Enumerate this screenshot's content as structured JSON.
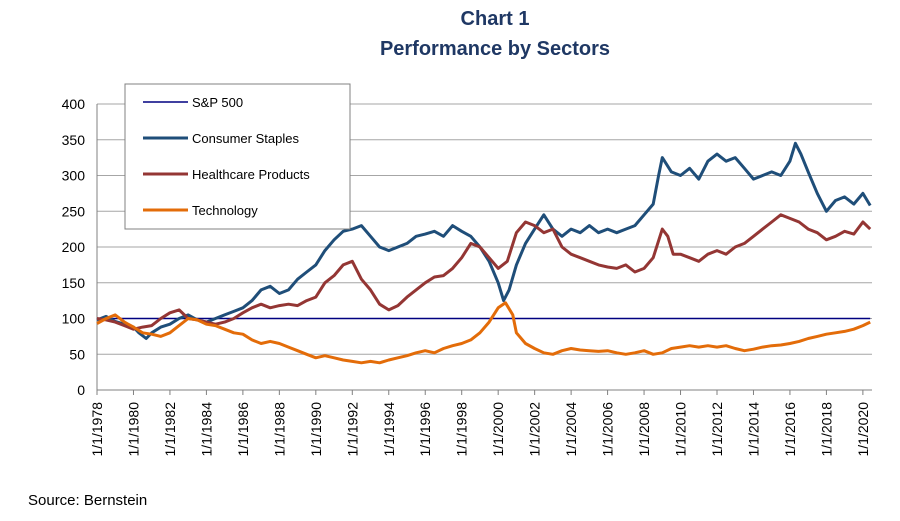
{
  "chart_data": {
    "type": "line",
    "title": "Chart 1",
    "subtitle": "Performance by Sectors",
    "xlabel": "",
    "ylabel": "",
    "ylim": [
      0,
      400
    ],
    "yticks": [
      0,
      50,
      100,
      150,
      200,
      250,
      300,
      350,
      400
    ],
    "xlim": [
      1978,
      2020.5
    ],
    "xticks": [
      "1/1/1978",
      "1/1/1980",
      "1/1/1982",
      "1/1/1984",
      "1/1/1986",
      "1/1/1988",
      "1/1/1990",
      "1/1/1992",
      "1/1/1994",
      "1/1/1996",
      "1/1/1998",
      "1/1/2000",
      "1/1/2002",
      "1/1/2004",
      "1/1/2006",
      "1/1/2008",
      "1/1/2010",
      "1/1/2012",
      "1/1/2014",
      "1/1/2016",
      "1/1/2018",
      "1/1/2020"
    ],
    "grid": true,
    "legend_position": "top-left",
    "series": [
      {
        "name": "S&P 500",
        "color": "#000080",
        "width": 1.5,
        "points": [
          [
            1978,
            100
          ],
          [
            2020.4,
            100
          ]
        ]
      },
      {
        "name": "Consumer Staples",
        "color": "#1f4e79",
        "width": 3,
        "points": [
          [
            1978,
            98
          ],
          [
            1978.5,
            103
          ],
          [
            1979,
            96
          ],
          [
            1979.5,
            92
          ],
          [
            1980,
            88
          ],
          [
            1980.3,
            80
          ],
          [
            1980.7,
            72
          ],
          [
            1981,
            80
          ],
          [
            1981.5,
            88
          ],
          [
            1982,
            92
          ],
          [
            1982.5,
            100
          ],
          [
            1983,
            105
          ],
          [
            1983.5,
            98
          ],
          [
            1984,
            95
          ],
          [
            1984.5,
            100
          ],
          [
            1985,
            105
          ],
          [
            1985.5,
            110
          ],
          [
            1986,
            115
          ],
          [
            1986.5,
            125
          ],
          [
            1987,
            140
          ],
          [
            1987.5,
            145
          ],
          [
            1988,
            135
          ],
          [
            1988.5,
            140
          ],
          [
            1989,
            155
          ],
          [
            1989.5,
            165
          ],
          [
            1990,
            175
          ],
          [
            1990.5,
            195
          ],
          [
            1991,
            210
          ],
          [
            1991.5,
            222
          ],
          [
            1992,
            225
          ],
          [
            1992.5,
            230
          ],
          [
            1993,
            215
          ],
          [
            1993.5,
            200
          ],
          [
            1994,
            195
          ],
          [
            1994.5,
            200
          ],
          [
            1995,
            205
          ],
          [
            1995.5,
            215
          ],
          [
            1996,
            218
          ],
          [
            1996.5,
            222
          ],
          [
            1997,
            215
          ],
          [
            1997.5,
            230
          ],
          [
            1998,
            222
          ],
          [
            1998.5,
            215
          ],
          [
            1999,
            200
          ],
          [
            1999.5,
            180
          ],
          [
            2000,
            150
          ],
          [
            2000.3,
            125
          ],
          [
            2000.6,
            140
          ],
          [
            2001,
            175
          ],
          [
            2001.5,
            205
          ],
          [
            2002,
            225
          ],
          [
            2002.5,
            245
          ],
          [
            2003,
            225
          ],
          [
            2003.5,
            215
          ],
          [
            2004,
            225
          ],
          [
            2004.5,
            220
          ],
          [
            2005,
            230
          ],
          [
            2005.5,
            220
          ],
          [
            2006,
            225
          ],
          [
            2006.5,
            220
          ],
          [
            2007,
            225
          ],
          [
            2007.5,
            230
          ],
          [
            2008,
            245
          ],
          [
            2008.5,
            260
          ],
          [
            2008.8,
            300
          ],
          [
            2009,
            325
          ],
          [
            2009.5,
            305
          ],
          [
            2010,
            300
          ],
          [
            2010.5,
            310
          ],
          [
            2011,
            295
          ],
          [
            2011.5,
            320
          ],
          [
            2012,
            330
          ],
          [
            2012.5,
            320
          ],
          [
            2013,
            325
          ],
          [
            2013.5,
            310
          ],
          [
            2014,
            295
          ],
          [
            2014.5,
            300
          ],
          [
            2015,
            305
          ],
          [
            2015.5,
            300
          ],
          [
            2016,
            320
          ],
          [
            2016.3,
            345
          ],
          [
            2016.6,
            330
          ],
          [
            2017,
            305
          ],
          [
            2017.5,
            275
          ],
          [
            2018,
            250
          ],
          [
            2018.5,
            265
          ],
          [
            2019,
            270
          ],
          [
            2019.5,
            260
          ],
          [
            2020,
            275
          ],
          [
            2020.4,
            258
          ]
        ]
      },
      {
        "name": "Healthcare Products",
        "color": "#943634",
        "width": 3,
        "points": [
          [
            1978,
            100
          ],
          [
            1978.5,
            98
          ],
          [
            1979,
            95
          ],
          [
            1979.5,
            90
          ],
          [
            1980,
            85
          ],
          [
            1980.5,
            88
          ],
          [
            1981,
            90
          ],
          [
            1981.5,
            100
          ],
          [
            1982,
            108
          ],
          [
            1982.5,
            112
          ],
          [
            1983,
            100
          ],
          [
            1983.5,
            98
          ],
          [
            1984,
            95
          ],
          [
            1984.5,
            92
          ],
          [
            1985,
            95
          ],
          [
            1985.5,
            100
          ],
          [
            1986,
            108
          ],
          [
            1986.5,
            115
          ],
          [
            1987,
            120
          ],
          [
            1987.5,
            115
          ],
          [
            1988,
            118
          ],
          [
            1988.5,
            120
          ],
          [
            1989,
            118
          ],
          [
            1989.5,
            125
          ],
          [
            1990,
            130
          ],
          [
            1990.5,
            150
          ],
          [
            1991,
            160
          ],
          [
            1991.5,
            175
          ],
          [
            1992,
            180
          ],
          [
            1992.5,
            155
          ],
          [
            1993,
            140
          ],
          [
            1993.5,
            120
          ],
          [
            1994,
            112
          ],
          [
            1994.5,
            118
          ],
          [
            1995,
            130
          ],
          [
            1995.5,
            140
          ],
          [
            1996,
            150
          ],
          [
            1996.5,
            158
          ],
          [
            1997,
            160
          ],
          [
            1997.5,
            170
          ],
          [
            1998,
            185
          ],
          [
            1998.5,
            205
          ],
          [
            1999,
            200
          ],
          [
            1999.5,
            185
          ],
          [
            2000,
            170
          ],
          [
            2000.5,
            180
          ],
          [
            2001,
            220
          ],
          [
            2001.5,
            235
          ],
          [
            2002,
            230
          ],
          [
            2002.5,
            220
          ],
          [
            2003,
            225
          ],
          [
            2003.5,
            200
          ],
          [
            2004,
            190
          ],
          [
            2004.5,
            185
          ],
          [
            2005,
            180
          ],
          [
            2005.5,
            175
          ],
          [
            2006,
            172
          ],
          [
            2006.5,
            170
          ],
          [
            2007,
            175
          ],
          [
            2007.5,
            165
          ],
          [
            2008,
            170
          ],
          [
            2008.5,
            185
          ],
          [
            2009,
            225
          ],
          [
            2009.3,
            215
          ],
          [
            2009.6,
            190
          ],
          [
            2010,
            190
          ],
          [
            2010.5,
            185
          ],
          [
            2011,
            180
          ],
          [
            2011.5,
            190
          ],
          [
            2012,
            195
          ],
          [
            2012.5,
            190
          ],
          [
            2013,
            200
          ],
          [
            2013.5,
            205
          ],
          [
            2014,
            215
          ],
          [
            2014.5,
            225
          ],
          [
            2015,
            235
          ],
          [
            2015.5,
            245
          ],
          [
            2016,
            240
          ],
          [
            2016.5,
            235
          ],
          [
            2017,
            225
          ],
          [
            2017.5,
            220
          ],
          [
            2018,
            210
          ],
          [
            2018.5,
            215
          ],
          [
            2019,
            222
          ],
          [
            2019.5,
            218
          ],
          [
            2020,
            235
          ],
          [
            2020.4,
            225
          ]
        ]
      },
      {
        "name": "Technology",
        "color": "#e36c09",
        "width": 3,
        "points": [
          [
            1978,
            93
          ],
          [
            1978.5,
            100
          ],
          [
            1979,
            105
          ],
          [
            1979.5,
            95
          ],
          [
            1980,
            88
          ],
          [
            1980.5,
            80
          ],
          [
            1981,
            78
          ],
          [
            1981.5,
            75
          ],
          [
            1982,
            80
          ],
          [
            1982.5,
            90
          ],
          [
            1983,
            100
          ],
          [
            1983.5,
            98
          ],
          [
            1984,
            92
          ],
          [
            1984.5,
            90
          ],
          [
            1985,
            85
          ],
          [
            1985.5,
            80
          ],
          [
            1986,
            78
          ],
          [
            1986.5,
            70
          ],
          [
            1987,
            65
          ],
          [
            1987.5,
            68
          ],
          [
            1988,
            65
          ],
          [
            1988.5,
            60
          ],
          [
            1989,
            55
          ],
          [
            1989.5,
            50
          ],
          [
            1990,
            45
          ],
          [
            1990.5,
            48
          ],
          [
            1991,
            45
          ],
          [
            1991.5,
            42
          ],
          [
            1992,
            40
          ],
          [
            1992.5,
            38
          ],
          [
            1993,
            40
          ],
          [
            1993.5,
            38
          ],
          [
            1994,
            42
          ],
          [
            1994.5,
            45
          ],
          [
            1995,
            48
          ],
          [
            1995.5,
            52
          ],
          [
            1996,
            55
          ],
          [
            1996.5,
            52
          ],
          [
            1997,
            58
          ],
          [
            1997.5,
            62
          ],
          [
            1998,
            65
          ],
          [
            1998.5,
            70
          ],
          [
            1999,
            80
          ],
          [
            1999.5,
            95
          ],
          [
            2000,
            115
          ],
          [
            2000.4,
            122
          ],
          [
            2000.8,
            105
          ],
          [
            2001,
            80
          ],
          [
            2001.5,
            65
          ],
          [
            2002,
            58
          ],
          [
            2002.5,
            52
          ],
          [
            2003,
            50
          ],
          [
            2003.5,
            55
          ],
          [
            2004,
            58
          ],
          [
            2004.5,
            56
          ],
          [
            2005,
            55
          ],
          [
            2005.5,
            54
          ],
          [
            2006,
            55
          ],
          [
            2006.5,
            52
          ],
          [
            2007,
            50
          ],
          [
            2007.5,
            52
          ],
          [
            2008,
            55
          ],
          [
            2008.5,
            50
          ],
          [
            2009,
            52
          ],
          [
            2009.5,
            58
          ],
          [
            2010,
            60
          ],
          [
            2010.5,
            62
          ],
          [
            2011,
            60
          ],
          [
            2011.5,
            62
          ],
          [
            2012,
            60
          ],
          [
            2012.5,
            62
          ],
          [
            2013,
            58
          ],
          [
            2013.5,
            55
          ],
          [
            2014,
            57
          ],
          [
            2014.5,
            60
          ],
          [
            2015,
            62
          ],
          [
            2015.5,
            63
          ],
          [
            2016,
            65
          ],
          [
            2016.5,
            68
          ],
          [
            2017,
            72
          ],
          [
            2017.5,
            75
          ],
          [
            2018,
            78
          ],
          [
            2018.5,
            80
          ],
          [
            2019,
            82
          ],
          [
            2019.5,
            85
          ],
          [
            2020,
            90
          ],
          [
            2020.4,
            95
          ]
        ]
      }
    ]
  },
  "source": "Source:  Bernstein"
}
